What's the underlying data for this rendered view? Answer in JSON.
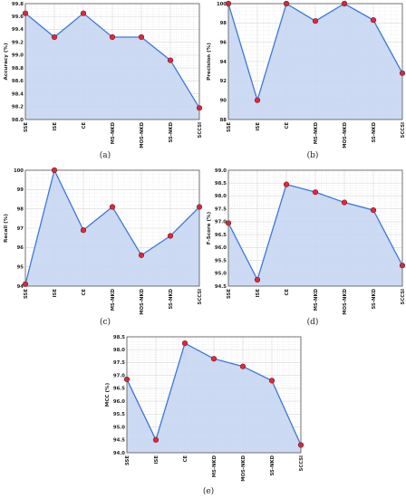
{
  "chart_data": [
    {
      "type": "area",
      "caption": "(a)",
      "ylabel": "Accuracy (%)",
      "categories": [
        "SSE",
        "ISE",
        "CE",
        "MS-NKD",
        "MOS-NKD",
        "SS-NKD",
        "SCCSI"
      ],
      "values": [
        99.65,
        99.28,
        99.65,
        99.28,
        99.28,
        98.92,
        98.18
      ],
      "ylim": [
        98.0,
        99.8
      ],
      "yticks": [
        "98.0",
        "98.2",
        "98.4",
        "98.6",
        "98.8",
        "99.0",
        "99.2",
        "99.4",
        "99.6",
        "99.8"
      ],
      "ytick_values": [
        98.0,
        98.2,
        98.4,
        98.6,
        98.8,
        99.0,
        99.2,
        99.4,
        99.6,
        99.8
      ],
      "grid": true
    },
    {
      "type": "area",
      "caption": "(b)",
      "ylabel": "Precision (%)",
      "categories": [
        "SSE",
        "ISE",
        "CE",
        "MS-NKD",
        "MOS-NKD",
        "SS-NKD",
        "SCCSI"
      ],
      "values": [
        100.0,
        90.0,
        100.0,
        98.2,
        100.0,
        98.3,
        92.8
      ],
      "ylim": [
        88,
        100
      ],
      "yticks": [
        "88",
        "90",
        "92",
        "94",
        "96",
        "98",
        "100"
      ],
      "ytick_values": [
        88,
        90,
        92,
        94,
        96,
        98,
        100
      ],
      "grid": true
    },
    {
      "type": "area",
      "caption": "(c)",
      "ylabel": "Recall (%)",
      "categories": [
        "SSE",
        "ISE",
        "CE",
        "MS-NKD",
        "MOS-NKD",
        "SS-NKD",
        "SCCSI"
      ],
      "values": [
        94.1,
        100.0,
        96.9,
        98.1,
        95.6,
        96.6,
        98.1
      ],
      "ylim": [
        94,
        100
      ],
      "yticks": [
        "94",
        "95",
        "96",
        "97",
        "98",
        "99",
        "100"
      ],
      "ytick_values": [
        94,
        95,
        96,
        97,
        98,
        99,
        100
      ],
      "grid": true
    },
    {
      "type": "area",
      "caption": "(d)",
      "ylabel": "F-Score (%)",
      "categories": [
        "SSE",
        "ISE",
        "CE",
        "MS-NKD",
        "MOS-NKD",
        "SS-NKD",
        "SCCSI"
      ],
      "values": [
        96.95,
        94.75,
        98.45,
        98.15,
        97.75,
        97.45,
        95.3
      ],
      "ylim": [
        94.5,
        99.0
      ],
      "yticks": [
        "94.5",
        "95.0",
        "95.5",
        "96.0",
        "96.5",
        "97.0",
        "97.5",
        "98.0",
        "98.5",
        "99.0"
      ],
      "ytick_values": [
        94.5,
        95.0,
        95.5,
        96.0,
        96.5,
        97.0,
        97.5,
        98.0,
        98.5,
        99.0
      ],
      "grid": true
    },
    {
      "type": "area",
      "caption": "(e)",
      "ylabel": "MCC (%)",
      "categories": [
        "SSE",
        "ISE",
        "CE",
        "MS-NKD",
        "MOS-NKD",
        "SS-NKD",
        "SCCSI"
      ],
      "values": [
        96.85,
        94.5,
        98.25,
        97.65,
        97.35,
        96.8,
        94.3
      ],
      "ylim": [
        94.0,
        98.5
      ],
      "yticks": [
        "94.0",
        "94.5",
        "95.0",
        "95.5",
        "96.0",
        "96.5",
        "97.0",
        "97.5",
        "98.0",
        "98.5"
      ],
      "ytick_values": [
        94.0,
        94.5,
        95.0,
        95.5,
        96.0,
        96.5,
        97.0,
        97.5,
        98.0,
        98.5
      ],
      "grid": true
    }
  ],
  "colors": {
    "fill": "#c6d6f2",
    "line": "#3c78d8",
    "marker": "#dd2a3e",
    "marker_edge": "#8a0f1c",
    "grid": "#d8d8d8",
    "axis": "#555555"
  }
}
